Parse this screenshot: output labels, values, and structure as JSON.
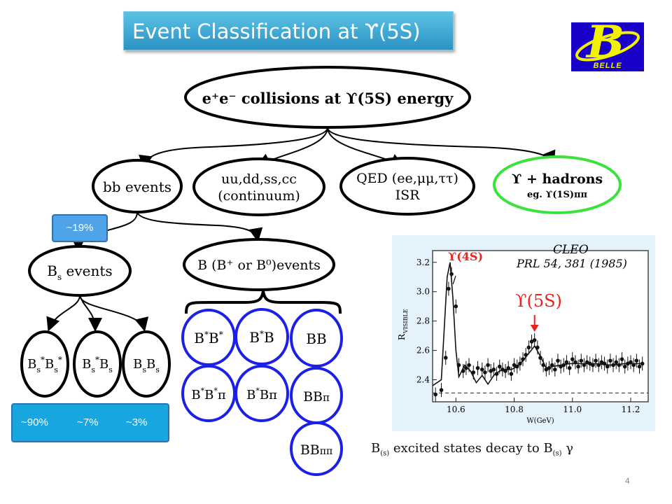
{
  "title": "Event Classification at ϒ(5S)",
  "logo": {
    "letter": "B",
    "text": "BELLE",
    "bg_color": "#1800c8",
    "fg_color": "#f2f200"
  },
  "top_node": "e⁺e⁻ collisions at ϒ(5S) energy",
  "level1": [
    {
      "line1": "bb events",
      "line2": ""
    },
    {
      "line1": "uu,dd,ss,cc",
      "line2": "(continuum)"
    },
    {
      "line1": "QED (ee,μμ,ττ)",
      "line2": "ISR"
    },
    {
      "line1": "ϒ + hadrons",
      "line2": "eg. ϒ(1S)ππ"
    }
  ],
  "bb_fraction": "~19%",
  "level2": [
    {
      "main": "B",
      "sub": "s",
      "rest": " events"
    },
    {
      "main": "B (B⁺ or B⁰)events",
      "sub": "",
      "rest": ""
    }
  ],
  "bs_modes": [
    {
      "a": "B",
      "a_sup": "*",
      "a_sub": "s",
      "b": "B",
      "b_sup": "*",
      "b_sub": "s"
    },
    {
      "a": "B",
      "a_sup": "*",
      "a_sub": "s",
      "b": "B",
      "b_sup": "",
      "b_sub": "s"
    },
    {
      "a": "B",
      "a_sup": "",
      "a_sub": "s",
      "b": "B",
      "b_sup": "",
      "b_sub": "s"
    }
  ],
  "bs_fractions": [
    "~90%",
    "~7%",
    "~3%"
  ],
  "b_modes": [
    {
      "text": "B*B*",
      "big": "B",
      "sup": "*",
      "big2": "B",
      "sup2": "*",
      "tail": ""
    },
    {
      "text": "B*B",
      "big": "B",
      "sup": "*",
      "big2": "B",
      "sup2": "",
      "tail": ""
    },
    {
      "text": "BB",
      "big": "BB",
      "sup": "",
      "big2": "",
      "sup2": "",
      "tail": ""
    },
    {
      "text": "B*B*π",
      "big": "B",
      "sup": "*",
      "big2": "B",
      "sup2": "*",
      "tail": "π"
    },
    {
      "text": "B*Bπ",
      "big": "B",
      "sup": "*",
      "big2": "B",
      "sup2": "",
      "tail": "π"
    },
    {
      "text": "BBπ",
      "big": "BB",
      "sup": "",
      "big2": "",
      "sup2": "",
      "tail": "π"
    },
    {
      "text": "BBππ",
      "big": "BB",
      "sup": "",
      "big2": "",
      "sup2": "",
      "tail": "ππ"
    }
  ],
  "plot": {
    "experiment": "CLEO",
    "reference": "PRL 54, 381 (1985)",
    "peak4s_label": "ϒ(4S)",
    "peak5s_label": "ϒ(5S)",
    "ylabel": "R",
    "ylabel_sub": "VISIBLE",
    "xlabel": "W(GeV)",
    "yticks": [
      "2.4",
      "2.6",
      "2.8",
      "3.0",
      "3.2"
    ],
    "xticks": [
      "10.6",
      "10.8",
      "11.0",
      "11.2"
    ]
  },
  "chart_data": {
    "type": "scatter",
    "xlabel": "W(GeV)",
    "ylabel": "R VISIBLE",
    "xlim": [
      10.52,
      11.26
    ],
    "ylim": [
      2.25,
      3.28
    ],
    "baseline": 2.31,
    "series": [
      {
        "name": "data",
        "x": [
          10.53,
          10.55,
          10.565,
          10.575,
          10.585,
          10.6,
          10.61,
          10.625,
          10.635,
          10.645,
          10.66,
          10.675,
          10.69,
          10.7,
          10.71,
          10.72,
          10.73,
          10.74,
          10.75,
          10.76,
          10.77,
          10.78,
          10.79,
          10.8,
          10.81,
          10.82,
          10.83,
          10.84,
          10.85,
          10.86,
          10.87,
          10.88,
          10.89,
          10.9,
          10.91,
          10.92,
          10.93,
          10.94,
          10.95,
          10.96,
          10.97,
          10.98,
          10.99,
          11.0,
          11.01,
          11.02,
          11.03,
          11.04,
          11.05,
          11.06,
          11.07,
          11.08,
          11.09,
          11.1,
          11.11,
          11.12,
          11.13,
          11.14,
          11.15,
          11.16,
          11.17,
          11.18,
          11.19,
          11.2,
          11.21,
          11.22,
          11.23,
          11.24
        ],
        "y": [
          2.3,
          2.33,
          2.55,
          3.02,
          3.12,
          2.9,
          2.5,
          2.46,
          2.48,
          2.5,
          2.45,
          2.48,
          2.47,
          2.45,
          2.5,
          2.46,
          2.47,
          2.44,
          2.49,
          2.47,
          2.46,
          2.48,
          2.44,
          2.5,
          2.49,
          2.51,
          2.54,
          2.57,
          2.62,
          2.66,
          2.67,
          2.62,
          2.55,
          2.5,
          2.47,
          2.48,
          2.5,
          2.47,
          2.53,
          2.49,
          2.5,
          2.52,
          2.48,
          2.54,
          2.52,
          2.49,
          2.53,
          2.5,
          2.52,
          2.51,
          2.5,
          2.53,
          2.5,
          2.52,
          2.51,
          2.49,
          2.53,
          2.5,
          2.52,
          2.5,
          2.54,
          2.49,
          2.51,
          2.52,
          2.5,
          2.53,
          2.49,
          2.51
        ]
      },
      {
        "name": "fit",
        "x": [
          10.52,
          10.55,
          10.57,
          10.58,
          10.59,
          10.6,
          10.61,
          10.63,
          10.65,
          10.67,
          10.69,
          10.71,
          10.73,
          10.75,
          10.77,
          10.79,
          10.81,
          10.83,
          10.85,
          10.87,
          10.89,
          10.91,
          10.93,
          10.96,
          10.99,
          11.03,
          11.08,
          11.13,
          11.18,
          11.24
        ],
        "y": [
          2.36,
          2.4,
          3.1,
          3.2,
          2.95,
          2.6,
          2.42,
          2.5,
          2.46,
          2.38,
          2.43,
          2.37,
          2.43,
          2.46,
          2.47,
          2.47,
          2.49,
          2.53,
          2.58,
          2.63,
          2.56,
          2.48,
          2.49,
          2.5,
          2.51,
          2.51,
          2.51,
          2.5,
          2.51,
          2.51
        ]
      }
    ]
  },
  "caption": {
    "a": "B",
    "a_sub": "(s)",
    "b": " excited states decay to B",
    "b_sub": "(s)",
    "c": " γ"
  },
  "page_number": "4"
}
